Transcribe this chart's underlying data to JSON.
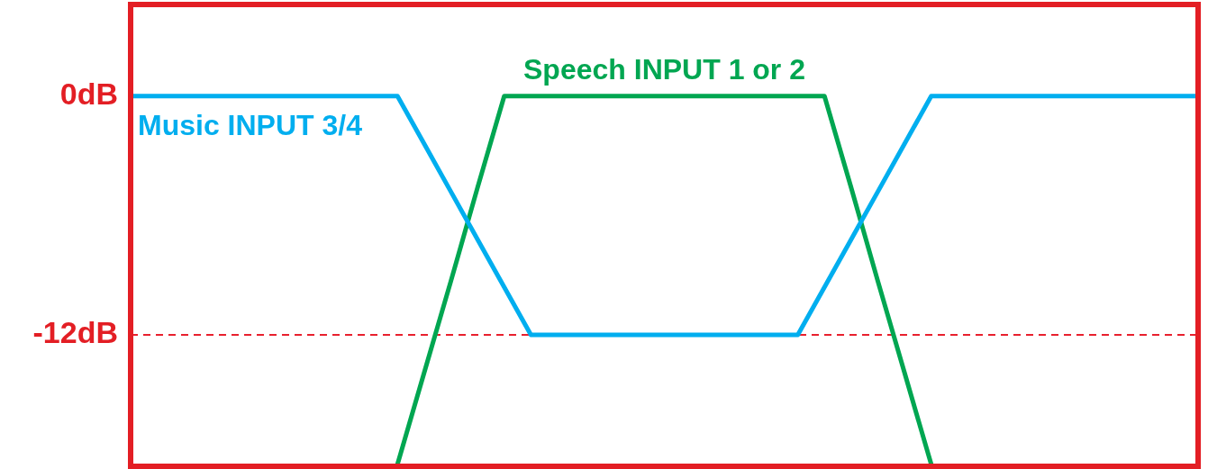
{
  "chart_data": {
    "type": "line",
    "tick_labels": "y",
    "grid": false,
    "legend": false,
    "marker": "none",
    "line_style": "solid",
    "categories": [
      null,
      null,
      null,
      null,
      null,
      null,
      null,
      null,
      null,
      null,
      null,
      null,
      null,
      null,
      null,
      null,
      null,
      null,
      null,
      null,
      null,
      null,
      null,
      null,
      null,
      null,
      null,
      null,
      null,
      null,
      null,
      null,
      null,
      null,
      null,
      null,
      null,
      null,
      null,
      null,
      null
    ],
    "ylim": [
      -18.6,
      4.6
    ],
    "yticks": [
      {
        "value": 0,
        "label": "0dB"
      },
      {
        "value": -12,
        "label": "-12dB"
      }
    ],
    "series": [
      {
        "name": "Music INPUT 3/4",
        "color": "#00aeef",
        "values": [
          0,
          0,
          0,
          0,
          0,
          0,
          0,
          0,
          0,
          0,
          0,
          -2.4,
          -4.8,
          -7.2,
          -9.6,
          -12,
          -12,
          -12,
          -12,
          -12,
          -12,
          -12,
          -12,
          -12,
          -12,
          -12,
          -9.6,
          -7.2,
          -4.8,
          -2.4,
          0,
          0,
          0,
          0,
          0,
          0,
          0,
          0,
          0,
          0,
          0
        ]
      },
      {
        "name": "Speech INPUT 1 or 2",
        "color": "#00a651",
        "values": [
          null,
          null,
          null,
          null,
          null,
          null,
          null,
          null,
          null,
          null,
          -18.5,
          -13.9,
          -9.3,
          -4.6,
          0,
          0,
          0,
          0,
          0,
          0,
          0,
          0,
          0,
          0,
          0,
          0,
          0,
          -4.6,
          -9.3,
          -13.9,
          -18.5,
          null,
          null,
          null,
          null,
          null,
          null,
          null,
          null,
          null,
          null
        ]
      }
    ],
    "ref_lines": [
      {
        "axis": "y",
        "value": -12,
        "color": "#e8212e",
        "line_style": "dashed"
      }
    ]
  }
}
